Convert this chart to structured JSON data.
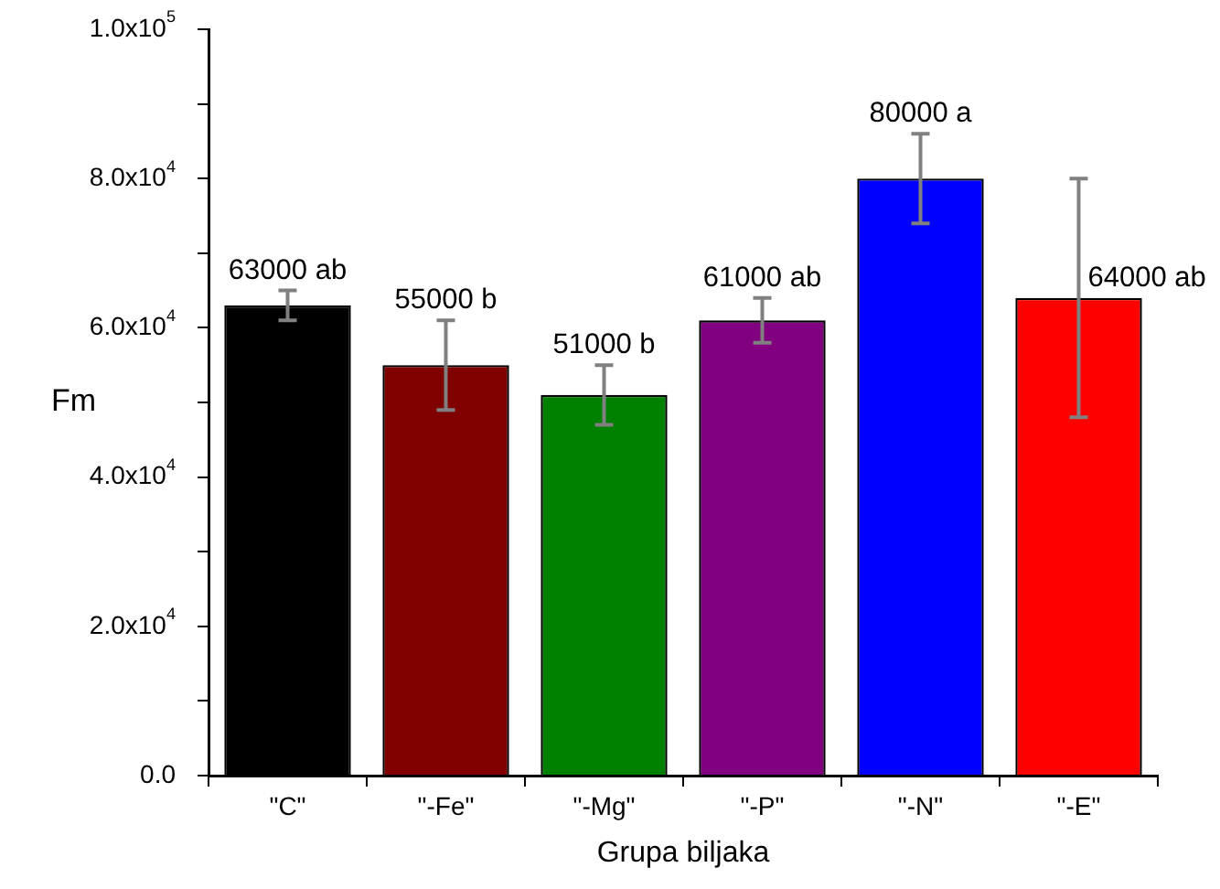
{
  "chart_data": {
    "type": "bar",
    "xlabel": "Grupa biljaka",
    "ylabel": "Fm",
    "categories": [
      "\"C\"",
      "\"-Fe\"",
      "\"-Mg\"",
      "\"-P\"",
      "\"-N\"",
      "\"-E\""
    ],
    "values": [
      63000,
      55000,
      51000,
      61000,
      80000,
      64000
    ],
    "colors": [
      "#000000",
      "#800000",
      "#008000",
      "#800080",
      "#0000ff",
      "#ff0000"
    ],
    "errors": [
      2000,
      6000,
      4000,
      3000,
      6000,
      16000
    ],
    "value_labels": [
      "63000 ab",
      "55000 b",
      "51000 b",
      "61000 ab",
      "80000 a",
      "64000 ab"
    ],
    "ylim": [
      0,
      100000
    ],
    "yticks": [
      {
        "value": 0,
        "label": "0.0"
      },
      {
        "value": 10000,
        "label": null
      },
      {
        "value": 20000,
        "label": "2.0x10$^{4}$"
      },
      {
        "value": 30000,
        "label": null
      },
      {
        "value": 40000,
        "label": "4.0x10$^{4}$"
      },
      {
        "value": 50000,
        "label": null
      },
      {
        "value": 60000,
        "label": "6.0x10$^{4}$"
      },
      {
        "value": 70000,
        "label": null
      },
      {
        "value": 80000,
        "label": "8.0x10$^{4}$"
      },
      {
        "value": 90000,
        "label": null
      },
      {
        "value": 100000,
        "label": "1.0x10$^{5}$"
      }
    ],
    "grid": false,
    "legend": false
  }
}
